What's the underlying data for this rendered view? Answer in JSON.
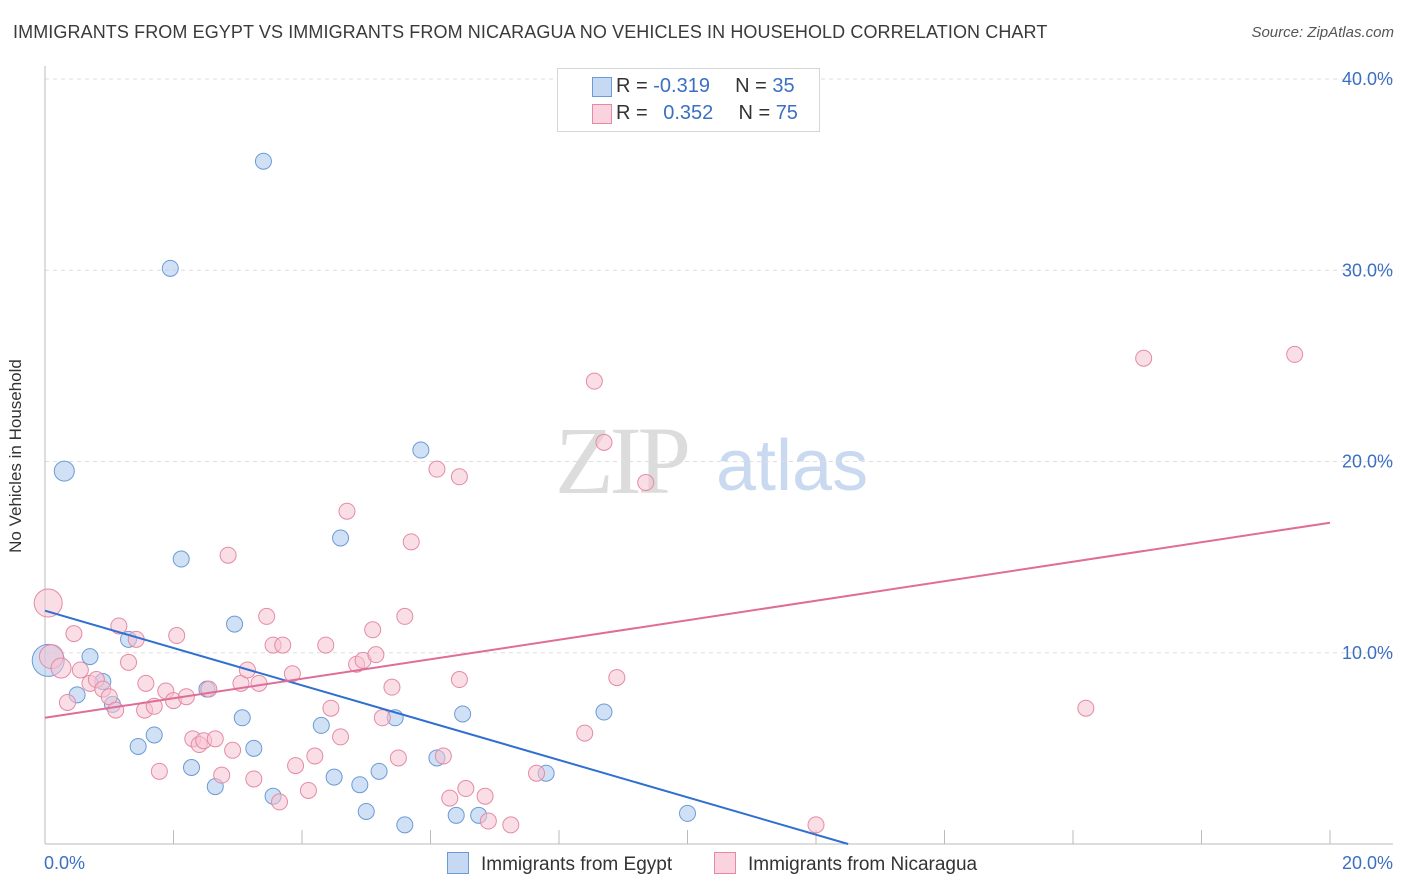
{
  "title": "IMMIGRANTS FROM EGYPT VS IMMIGRANTS FROM NICARAGUA NO VEHICLES IN HOUSEHOLD CORRELATION CHART",
  "source": "Source: ZipAtlas.com",
  "watermark": {
    "zip": "ZIP",
    "atlas": "atlas"
  },
  "legend_stats": [
    {
      "r_label": "R = ",
      "r_value": "-0.319",
      "n_label": "N = ",
      "n_value": "35",
      "color": "#a9c8ef",
      "border": "#6c9ad6"
    },
    {
      "r_label": "R = ",
      "r_value": "0.352",
      "n_label": "N = ",
      "n_value": "75",
      "color": "#f6c3d2",
      "border": "#e58aa6"
    }
  ],
  "bottom_legend": [
    {
      "label": "Immigrants from Egypt",
      "color": "#c5d9f2",
      "border": "#6c9ad6"
    },
    {
      "label": "Immigrants from Nicaragua",
      "color": "#fbd3df",
      "border": "#e58aa6"
    }
  ],
  "chart_data": {
    "type": "scatter",
    "title": "IMMIGRANTS FROM EGYPT VS IMMIGRANTS FROM NICARAGUA NO VEHICLES IN HOUSEHOLD CORRELATION CHART",
    "xlabel": "",
    "ylabel": "No Vehicles in Household",
    "xlim": [
      0,
      20
    ],
    "ylim": [
      0,
      40
    ],
    "x_tick_labels": [
      "0.0%",
      "20.0%"
    ],
    "y_tick_labels": [
      "10.0%",
      "20.0%",
      "30.0%",
      "40.0%"
    ],
    "y_ticks": [
      10,
      20,
      30,
      40
    ],
    "grid": true,
    "series": [
      {
        "name": "Immigrants from Egypt",
        "color": "#6c9ad6",
        "fill": "#a9c8ef",
        "trend": {
          "x": [
            0,
            12.5
          ],
          "y": [
            12.2,
            0
          ]
        },
        "points": [
          [
            0.05,
            9.6,
            16
          ],
          [
            0.3,
            19.5,
            10
          ],
          [
            0.5,
            7.8,
            8
          ],
          [
            0.7,
            9.8,
            8
          ],
          [
            0.9,
            8.5,
            8
          ],
          [
            1.05,
            7.3,
            8
          ],
          [
            1.3,
            10.7,
            8
          ],
          [
            1.45,
            5.1,
            8
          ],
          [
            1.7,
            5.7,
            8
          ],
          [
            1.95,
            30.1,
            8
          ],
          [
            2.12,
            14.9,
            8
          ],
          [
            2.28,
            4.0,
            8
          ],
          [
            2.52,
            8.1,
            8
          ],
          [
            2.65,
            3.0,
            8
          ],
          [
            2.95,
            11.5,
            8
          ],
          [
            3.07,
            6.6,
            8
          ],
          [
            3.25,
            5.0,
            8
          ],
          [
            3.4,
            35.7,
            8
          ],
          [
            3.55,
            2.5,
            8
          ],
          [
            4.3,
            6.2,
            8
          ],
          [
            4.5,
            3.5,
            8
          ],
          [
            4.6,
            16.0,
            8
          ],
          [
            4.9,
            3.1,
            8
          ],
          [
            5.0,
            1.7,
            8
          ],
          [
            5.2,
            3.8,
            8
          ],
          [
            5.45,
            6.6,
            8
          ],
          [
            5.6,
            1.0,
            8
          ],
          [
            5.85,
            20.6,
            8
          ],
          [
            6.1,
            4.5,
            8
          ],
          [
            6.4,
            1.5,
            8
          ],
          [
            6.5,
            6.8,
            8
          ],
          [
            6.75,
            1.5,
            8
          ],
          [
            7.8,
            3.7,
            8
          ],
          [
            8.7,
            6.9,
            8
          ],
          [
            10.0,
            1.6,
            8
          ]
        ]
      },
      {
        "name": "Immigrants from Nicaragua",
        "color": "#e58aa6",
        "fill": "#f6c3d2",
        "trend": {
          "x": [
            0,
            20
          ],
          "y": [
            6.6,
            16.8
          ]
        },
        "points": [
          [
            0.05,
            12.6,
            14
          ],
          [
            0.1,
            9.8,
            12
          ],
          [
            0.25,
            9.2,
            10
          ],
          [
            0.35,
            7.4,
            8
          ],
          [
            0.45,
            11.0,
            8
          ],
          [
            0.55,
            9.1,
            8
          ],
          [
            0.7,
            8.4,
            8
          ],
          [
            0.8,
            8.6,
            8
          ],
          [
            0.9,
            8.1,
            8
          ],
          [
            1.0,
            7.7,
            8
          ],
          [
            1.1,
            7.0,
            8
          ],
          [
            1.15,
            11.4,
            8
          ],
          [
            1.3,
            9.5,
            8
          ],
          [
            1.42,
            10.7,
            8
          ],
          [
            1.55,
            7.0,
            8
          ],
          [
            1.57,
            8.4,
            8
          ],
          [
            1.7,
            7.2,
            8
          ],
          [
            1.78,
            3.8,
            8
          ],
          [
            1.88,
            8.0,
            8
          ],
          [
            2.0,
            7.5,
            8
          ],
          [
            2.05,
            10.9,
            8
          ],
          [
            2.2,
            7.7,
            8
          ],
          [
            2.3,
            5.5,
            8
          ],
          [
            2.4,
            5.2,
            8
          ],
          [
            2.47,
            5.4,
            8
          ],
          [
            2.55,
            8.1,
            8
          ],
          [
            2.65,
            5.5,
            8
          ],
          [
            2.75,
            3.6,
            8
          ],
          [
            2.85,
            15.1,
            8
          ],
          [
            2.92,
            4.9,
            8
          ],
          [
            3.05,
            8.4,
            8
          ],
          [
            3.15,
            9.1,
            8
          ],
          [
            3.25,
            3.4,
            8
          ],
          [
            3.33,
            8.4,
            8
          ],
          [
            3.45,
            11.9,
            8
          ],
          [
            3.55,
            10.4,
            8
          ],
          [
            3.7,
            10.4,
            8
          ],
          [
            3.65,
            2.2,
            8
          ],
          [
            3.85,
            8.9,
            8
          ],
          [
            3.9,
            4.1,
            8
          ],
          [
            4.1,
            2.8,
            8
          ],
          [
            4.2,
            4.6,
            8
          ],
          [
            4.37,
            10.4,
            8
          ],
          [
            4.45,
            7.1,
            8
          ],
          [
            4.6,
            5.6,
            8
          ],
          [
            4.7,
            17.4,
            8
          ],
          [
            4.85,
            9.4,
            8
          ],
          [
            4.95,
            9.6,
            8
          ],
          [
            5.1,
            11.2,
            8
          ],
          [
            5.15,
            9.9,
            8
          ],
          [
            5.25,
            6.6,
            8
          ],
          [
            5.4,
            8.2,
            8
          ],
          [
            5.5,
            4.5,
            8
          ],
          [
            5.6,
            11.9,
            8
          ],
          [
            5.7,
            15.8,
            8
          ],
          [
            6.1,
            19.6,
            8
          ],
          [
            6.2,
            4.6,
            8
          ],
          [
            6.3,
            2.4,
            8
          ],
          [
            6.45,
            19.2,
            8
          ],
          [
            6.45,
            8.6,
            8
          ],
          [
            6.55,
            2.9,
            8
          ],
          [
            6.85,
            2.5,
            8
          ],
          [
            6.9,
            1.2,
            8
          ],
          [
            7.25,
            1.0,
            8
          ],
          [
            7.65,
            3.7,
            8
          ],
          [
            8.4,
            5.8,
            8
          ],
          [
            8.55,
            24.2,
            8
          ],
          [
            8.7,
            21.0,
            8
          ],
          [
            9.35,
            18.9,
            8
          ],
          [
            8.9,
            8.7,
            8
          ],
          [
            12.0,
            1.0,
            8
          ],
          [
            16.2,
            7.1,
            8
          ],
          [
            17.1,
            25.4,
            8
          ],
          [
            19.45,
            25.6,
            8
          ],
          [
            8.3,
            1.0,
            0
          ]
        ]
      }
    ]
  }
}
